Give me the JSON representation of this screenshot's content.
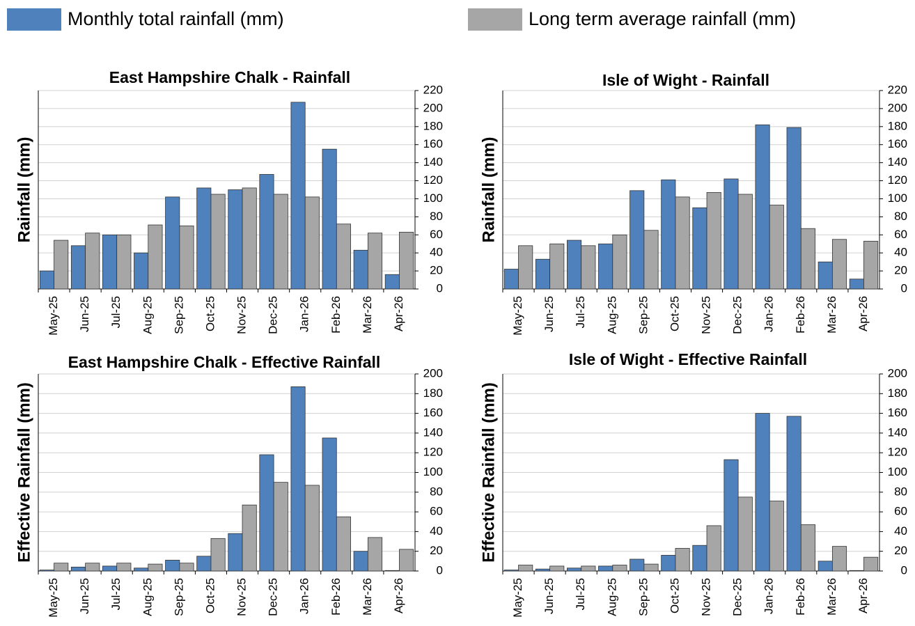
{
  "legend": [
    {
      "name": "Monthly total rainfall (mm)",
      "color": "#4f81bd"
    },
    {
      "name": "Long term average rainfall (mm)",
      "color": "#a6a6a6"
    }
  ],
  "chart_data": [
    {
      "type": "bar",
      "title": "East Hampshire Chalk - Rainfall",
      "y_label": "Rainfall (mm)",
      "categories": [
        "May-25",
        "Jun-25",
        "Jul-25",
        "Aug-25",
        "Sep-25",
        "Oct-25",
        "Nov-25",
        "Dec-25",
        "Jan-26",
        "Feb-26",
        "Mar-26",
        "Apr-26"
      ],
      "series": [
        {
          "values": [
            20,
            48,
            60,
            40,
            102,
            112,
            110,
            127,
            207,
            155,
            43,
            16
          ]
        },
        {
          "values": [
            54,
            62,
            60,
            71,
            70,
            105,
            112,
            105,
            102,
            72,
            62,
            63
          ]
        }
      ],
      "ylim": [
        0,
        220
      ],
      "yticks": [
        0,
        20,
        40,
        60,
        80,
        100,
        120,
        140,
        160,
        180,
        200,
        220
      ],
      "grid": true
    },
    {
      "type": "bar",
      "title": "Isle of Wight - Rainfall",
      "y_label": "Rainfall (mm)",
      "categories": [
        "May-25",
        "Jun-25",
        "Jul-25",
        "Aug-25",
        "Sep-25",
        "Oct-25",
        "Nov-25",
        "Dec-25",
        "Jan-26",
        "Feb-26",
        "Mar-26",
        "Apr-26"
      ],
      "series": [
        {
          "values": [
            22,
            33,
            54,
            50,
            109,
            121,
            90,
            122,
            182,
            179,
            30,
            11
          ]
        },
        {
          "values": [
            48,
            50,
            48,
            60,
            65,
            102,
            107,
            105,
            93,
            67,
            55,
            53
          ]
        }
      ],
      "ylim": [
        0,
        220
      ],
      "yticks": [
        0,
        20,
        40,
        60,
        80,
        100,
        120,
        140,
        160,
        180,
        200,
        220
      ],
      "grid": true
    },
    {
      "type": "bar",
      "title": "East Hampshire Chalk - Effective Rainfall",
      "y_label": "Effective Rainfall (mm)",
      "categories": [
        "May-25",
        "Jun-25",
        "Jul-25",
        "Aug-25",
        "Sep-25",
        "Oct-25",
        "Nov-25",
        "Dec-25",
        "Jan-26",
        "Feb-26",
        "Mar-26",
        "Apr-26"
      ],
      "series": [
        {
          "values": [
            1,
            4,
            5,
            3,
            11,
            15,
            38,
            118,
            187,
            135,
            20,
            0.5
          ]
        },
        {
          "values": [
            8,
            8,
            8,
            7,
            8,
            33,
            67,
            90,
            87,
            55,
            34,
            22
          ]
        }
      ],
      "ylim": [
        0,
        200
      ],
      "yticks": [
        0,
        20,
        40,
        60,
        80,
        100,
        120,
        140,
        160,
        180,
        200
      ],
      "grid": true
    },
    {
      "type": "bar",
      "title": "Isle of Wight - Effective Rainfall",
      "y_label": "Effective Rainfall (mm)",
      "categories": [
        "May-25",
        "Jun-25",
        "Jul-25",
        "Aug-25",
        "Sep-25",
        "Oct-25",
        "Nov-25",
        "Dec-25",
        "Jan-26",
        "Feb-26",
        "Mar-26",
        "Apr-26"
      ],
      "series": [
        {
          "values": [
            1,
            2,
            3,
            5,
            12,
            16,
            26,
            113,
            160,
            157,
            10,
            0.5
          ]
        },
        {
          "values": [
            6,
            5,
            5,
            6,
            7,
            23,
            46,
            75,
            71,
            47,
            25,
            14
          ]
        }
      ],
      "ylim": [
        0,
        200
      ],
      "yticks": [
        0,
        20,
        40,
        60,
        80,
        100,
        120,
        140,
        160,
        180,
        200
      ],
      "grid": true
    }
  ]
}
